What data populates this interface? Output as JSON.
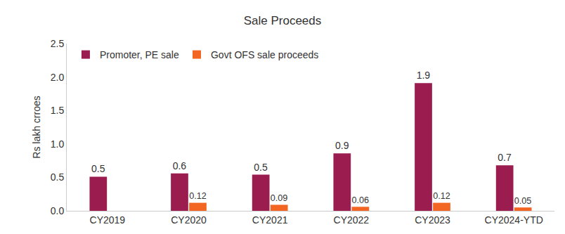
{
  "chart_data": {
    "type": "bar",
    "title": "Sale Proceeds",
    "y_label": "Rs lakh crroes",
    "categories": [
      "CY2019",
      "CY2020",
      "CY2021",
      "CY2022",
      "CY2023",
      "CY2024-YTD"
    ],
    "series": [
      {
        "name": "Promoter, PE sale",
        "color": "#9b1c4f",
        "values": [
          0.51,
          0.56,
          0.54,
          0.86,
          1.91,
          0.68
        ],
        "value_labels": [
          "0.5",
          "0.6",
          "0.5",
          "0.9",
          "1.9",
          "0.7"
        ]
      },
      {
        "name": "Govt OFS sale proceeds",
        "color": "#f26522",
        "values": [
          null,
          0.12,
          0.09,
          0.06,
          0.12,
          0.05
        ]
      }
    ],
    "ylim": [
      0,
      2.5
    ],
    "yticks": [
      {
        "value": 0,
        "label": "0.0"
      },
      0.5,
      {
        "value": 1,
        "label": "1.0"
      },
      1.5,
      {
        "value": 2,
        "label": "2.0"
      },
      2.5
    ],
    "grid": false,
    "legend": "top-left",
    "data_labels": true
  }
}
